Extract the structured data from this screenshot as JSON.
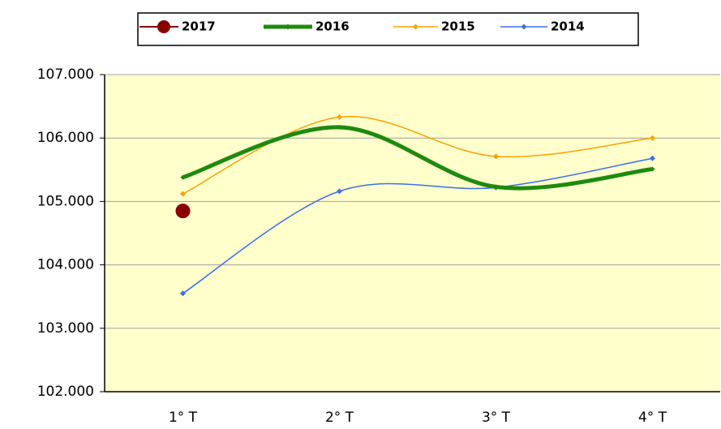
{
  "chart_data": {
    "type": "line",
    "categories": [
      "1° T",
      "2° T",
      "3° T",
      "4° T"
    ],
    "series": [
      {
        "name": "2017",
        "color": "#8b0000",
        "values": [
          104850,
          null,
          null,
          null
        ]
      },
      {
        "name": "2016",
        "color": "#1e8a0e",
        "values": [
          105380,
          106170,
          105230,
          105510
        ]
      },
      {
        "name": "2015",
        "color": "#ffa000",
        "values": [
          105120,
          106330,
          105710,
          106000
        ]
      },
      {
        "name": "2014",
        "color": "#3c6ef0",
        "values": [
          103550,
          105160,
          105220,
          105680
        ]
      }
    ],
    "ylim": [
      102000,
      107000
    ],
    "yticks": [
      {
        "value": 102000,
        "label": "102.000"
      },
      {
        "value": 103000,
        "label": "103.000"
      },
      {
        "value": 104000,
        "label": "104.000"
      },
      {
        "value": 105000,
        "label": "105.000"
      },
      {
        "value": 106000,
        "label": "106.000"
      },
      {
        "value": 107000,
        "label": "107.000"
      }
    ],
    "grid": true,
    "legend": "top"
  }
}
